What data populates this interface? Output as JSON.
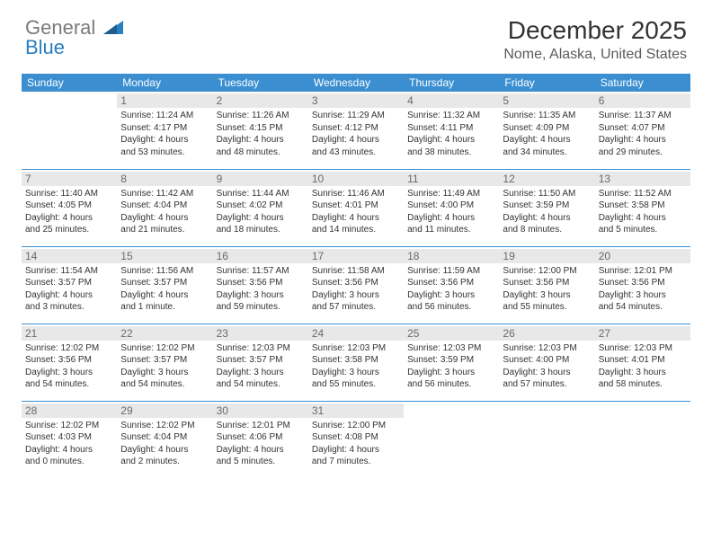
{
  "logo": {
    "text1": "General",
    "text2": "Blue",
    "color1": "#7a7a7a",
    "color2": "#2a7fbf"
  },
  "title": "December 2025",
  "location": "Nome, Alaska, United States",
  "header_bg": "#3b8fd1",
  "border_color": "#3b8fd1",
  "daynum_bg": "#e8e8e8",
  "weekdays": [
    "Sunday",
    "Monday",
    "Tuesday",
    "Wednesday",
    "Thursday",
    "Friday",
    "Saturday"
  ],
  "weeks": [
    [
      null,
      {
        "n": "1",
        "sr": "Sunrise: 11:24 AM",
        "ss": "Sunset: 4:17 PM",
        "d1": "Daylight: 4 hours",
        "d2": "and 53 minutes."
      },
      {
        "n": "2",
        "sr": "Sunrise: 11:26 AM",
        "ss": "Sunset: 4:15 PM",
        "d1": "Daylight: 4 hours",
        "d2": "and 48 minutes."
      },
      {
        "n": "3",
        "sr": "Sunrise: 11:29 AM",
        "ss": "Sunset: 4:12 PM",
        "d1": "Daylight: 4 hours",
        "d2": "and 43 minutes."
      },
      {
        "n": "4",
        "sr": "Sunrise: 11:32 AM",
        "ss": "Sunset: 4:11 PM",
        "d1": "Daylight: 4 hours",
        "d2": "and 38 minutes."
      },
      {
        "n": "5",
        "sr": "Sunrise: 11:35 AM",
        "ss": "Sunset: 4:09 PM",
        "d1": "Daylight: 4 hours",
        "d2": "and 34 minutes."
      },
      {
        "n": "6",
        "sr": "Sunrise: 11:37 AM",
        "ss": "Sunset: 4:07 PM",
        "d1": "Daylight: 4 hours",
        "d2": "and 29 minutes."
      }
    ],
    [
      {
        "n": "7",
        "sr": "Sunrise: 11:40 AM",
        "ss": "Sunset: 4:05 PM",
        "d1": "Daylight: 4 hours",
        "d2": "and 25 minutes."
      },
      {
        "n": "8",
        "sr": "Sunrise: 11:42 AM",
        "ss": "Sunset: 4:04 PM",
        "d1": "Daylight: 4 hours",
        "d2": "and 21 minutes."
      },
      {
        "n": "9",
        "sr": "Sunrise: 11:44 AM",
        "ss": "Sunset: 4:02 PM",
        "d1": "Daylight: 4 hours",
        "d2": "and 18 minutes."
      },
      {
        "n": "10",
        "sr": "Sunrise: 11:46 AM",
        "ss": "Sunset: 4:01 PM",
        "d1": "Daylight: 4 hours",
        "d2": "and 14 minutes."
      },
      {
        "n": "11",
        "sr": "Sunrise: 11:49 AM",
        "ss": "Sunset: 4:00 PM",
        "d1": "Daylight: 4 hours",
        "d2": "and 11 minutes."
      },
      {
        "n": "12",
        "sr": "Sunrise: 11:50 AM",
        "ss": "Sunset: 3:59 PM",
        "d1": "Daylight: 4 hours",
        "d2": "and 8 minutes."
      },
      {
        "n": "13",
        "sr": "Sunrise: 11:52 AM",
        "ss": "Sunset: 3:58 PM",
        "d1": "Daylight: 4 hours",
        "d2": "and 5 minutes."
      }
    ],
    [
      {
        "n": "14",
        "sr": "Sunrise: 11:54 AM",
        "ss": "Sunset: 3:57 PM",
        "d1": "Daylight: 4 hours",
        "d2": "and 3 minutes."
      },
      {
        "n": "15",
        "sr": "Sunrise: 11:56 AM",
        "ss": "Sunset: 3:57 PM",
        "d1": "Daylight: 4 hours",
        "d2": "and 1 minute."
      },
      {
        "n": "16",
        "sr": "Sunrise: 11:57 AM",
        "ss": "Sunset: 3:56 PM",
        "d1": "Daylight: 3 hours",
        "d2": "and 59 minutes."
      },
      {
        "n": "17",
        "sr": "Sunrise: 11:58 AM",
        "ss": "Sunset: 3:56 PM",
        "d1": "Daylight: 3 hours",
        "d2": "and 57 minutes."
      },
      {
        "n": "18",
        "sr": "Sunrise: 11:59 AM",
        "ss": "Sunset: 3:56 PM",
        "d1": "Daylight: 3 hours",
        "d2": "and 56 minutes."
      },
      {
        "n": "19",
        "sr": "Sunrise: 12:00 PM",
        "ss": "Sunset: 3:56 PM",
        "d1": "Daylight: 3 hours",
        "d2": "and 55 minutes."
      },
      {
        "n": "20",
        "sr": "Sunrise: 12:01 PM",
        "ss": "Sunset: 3:56 PM",
        "d1": "Daylight: 3 hours",
        "d2": "and 54 minutes."
      }
    ],
    [
      {
        "n": "21",
        "sr": "Sunrise: 12:02 PM",
        "ss": "Sunset: 3:56 PM",
        "d1": "Daylight: 3 hours",
        "d2": "and 54 minutes."
      },
      {
        "n": "22",
        "sr": "Sunrise: 12:02 PM",
        "ss": "Sunset: 3:57 PM",
        "d1": "Daylight: 3 hours",
        "d2": "and 54 minutes."
      },
      {
        "n": "23",
        "sr": "Sunrise: 12:03 PM",
        "ss": "Sunset: 3:57 PM",
        "d1": "Daylight: 3 hours",
        "d2": "and 54 minutes."
      },
      {
        "n": "24",
        "sr": "Sunrise: 12:03 PM",
        "ss": "Sunset: 3:58 PM",
        "d1": "Daylight: 3 hours",
        "d2": "and 55 minutes."
      },
      {
        "n": "25",
        "sr": "Sunrise: 12:03 PM",
        "ss": "Sunset: 3:59 PM",
        "d1": "Daylight: 3 hours",
        "d2": "and 56 minutes."
      },
      {
        "n": "26",
        "sr": "Sunrise: 12:03 PM",
        "ss": "Sunset: 4:00 PM",
        "d1": "Daylight: 3 hours",
        "d2": "and 57 minutes."
      },
      {
        "n": "27",
        "sr": "Sunrise: 12:03 PM",
        "ss": "Sunset: 4:01 PM",
        "d1": "Daylight: 3 hours",
        "d2": "and 58 minutes."
      }
    ],
    [
      {
        "n": "28",
        "sr": "Sunrise: 12:02 PM",
        "ss": "Sunset: 4:03 PM",
        "d1": "Daylight: 4 hours",
        "d2": "and 0 minutes."
      },
      {
        "n": "29",
        "sr": "Sunrise: 12:02 PM",
        "ss": "Sunset: 4:04 PM",
        "d1": "Daylight: 4 hours",
        "d2": "and 2 minutes."
      },
      {
        "n": "30",
        "sr": "Sunrise: 12:01 PM",
        "ss": "Sunset: 4:06 PM",
        "d1": "Daylight: 4 hours",
        "d2": "and 5 minutes."
      },
      {
        "n": "31",
        "sr": "Sunrise: 12:00 PM",
        "ss": "Sunset: 4:08 PM",
        "d1": "Daylight: 4 hours",
        "d2": "and 7 minutes."
      },
      null,
      null,
      null
    ]
  ]
}
